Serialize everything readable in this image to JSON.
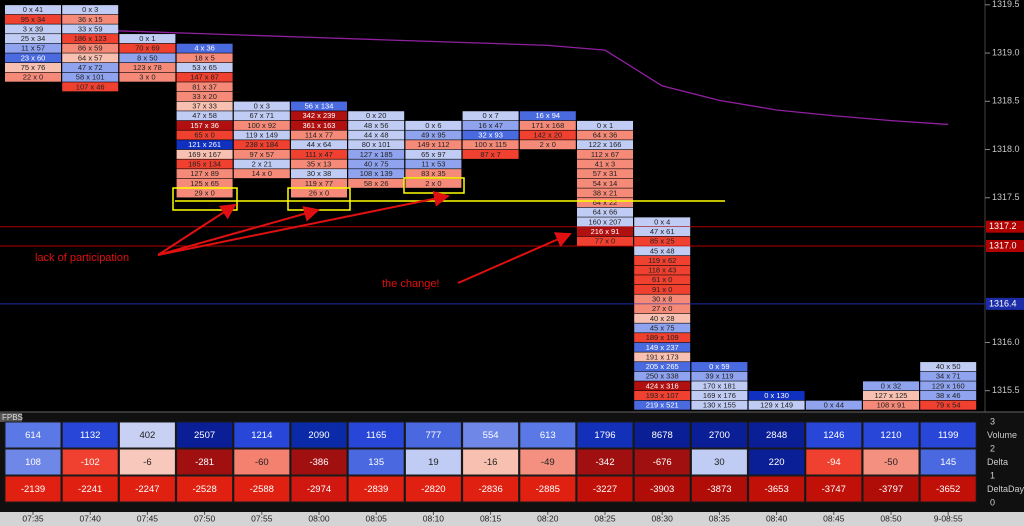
{
  "chart_data": {
    "type": "footprint",
    "categories": [
      "07:35",
      "07:40",
      "07:45",
      "07:50",
      "07:55",
      "08:00",
      "08:05",
      "08:10",
      "08:15",
      "08:20",
      "08:25",
      "08:30",
      "08:35",
      "08:40",
      "08:45",
      "08:50",
      "9-08:55"
    ],
    "ylim": [
      1315.3,
      1319.55
    ],
    "yticks": [
      1319.5,
      {
        "value": 1319,
        "label": "1319.0"
      },
      1318.5,
      {
        "value": 1318,
        "label": "1318.0"
      },
      1317.5,
      {
        "value": 1316,
        "label": "1316.0"
      },
      1315.5
    ],
    "tick_size": 0.1,
    "price_markers": [
      {
        "value": 1317.2,
        "color": "#b00000"
      },
      {
        "value": 1317,
        "label": "1317.0",
        "color": "#b00000"
      },
      {
        "value": 1316.4,
        "color": "#1c2ca8"
      }
    ],
    "ma": {
      "color": "#9020a0",
      "values": [
        null,
        1319.24,
        1319.22,
        1319.2,
        1319.18,
        1319.16,
        1319.14,
        1319.12,
        1319.1,
        1319.08,
        1319.03,
        1318.66,
        1318.51,
        1318.41,
        1318.35,
        1318.3,
        1318.26
      ]
    },
    "columns": [
      {
        "high": 1319.45,
        "cells": [
          [
            "0 x 41",
            "#c0ccf4"
          ],
          [
            "95 x 34",
            "#f04030"
          ],
          [
            "3 x 39",
            "#c0ccf4"
          ],
          [
            "25 x 34",
            "#c0ccf4"
          ],
          [
            "11 x 57",
            "#8fa3ee"
          ],
          [
            "23 x 60",
            "#4a6ae0"
          ],
          [
            "75 x 76",
            "#f8c0b0"
          ],
          [
            "22 x 0",
            "#f58a78"
          ]
        ]
      },
      {
        "high": 1319.45,
        "cells": [
          [
            "0 x 3",
            "#c0ccf4"
          ],
          [
            "36 x 15",
            "#f58a78"
          ],
          [
            "33 x 59",
            "#c0ccf4"
          ],
          [
            "186 x 123",
            "#f04030"
          ],
          [
            "86 x 59",
            "#f58a78"
          ],
          [
            "64 x 57",
            "#f8c0b0"
          ],
          [
            "47 x 72",
            "#8fa3ee"
          ],
          [
            "58 x 101",
            "#8fa3ee"
          ],
          [
            "107 x 46",
            "#f04030"
          ]
        ]
      },
      {
        "high": 1319.15,
        "cells": [
          [
            "0 x 1",
            "#c0ccf4"
          ],
          [
            "70 x 69",
            "#f04030"
          ],
          [
            "8 x 50",
            "#8fa3ee"
          ],
          [
            "123 x 78",
            "#f58a78"
          ],
          [
            "3 x 0",
            "#f58a78"
          ]
        ]
      },
      {
        "high": 1319.05,
        "cells": [
          [
            "4 x 36",
            "#4a6ae0"
          ],
          [
            "18 x 5",
            "#f58a78"
          ],
          [
            "53 x 65",
            "#c0ccf4"
          ],
          [
            "147 x 87",
            "#f04030"
          ],
          [
            "81 x 37",
            "#f58a78"
          ],
          [
            "33 x 20",
            "#f58a78"
          ],
          [
            "37 x 33",
            "#f8c0b0"
          ],
          [
            "47 x 58",
            "#c0ccf4"
          ],
          [
            "157 x 36",
            "#b01010"
          ],
          [
            "65 x 0",
            "#f04030"
          ],
          [
            "121 x 261",
            "#1030c0"
          ],
          [
            "169 x 167",
            "#f8c0b0"
          ],
          [
            "185 x 134",
            "#f04030"
          ],
          [
            "127 x 89",
            "#f58a78"
          ],
          [
            "125 x 65",
            "#f58a78"
          ],
          [
            "29 x 0",
            "#f58a78"
          ]
        ]
      },
      {
        "high": 1318.45,
        "cells": [
          [
            "0 x 3",
            "#c0ccf4"
          ],
          [
            "67 x 71",
            "#c0ccf4"
          ],
          [
            "100 x 92",
            "#f58a78"
          ],
          [
            "119 x 149",
            "#c0ccf4"
          ],
          [
            "238 x 184",
            "#f04030"
          ],
          [
            "97 x 57",
            "#f58a78"
          ],
          [
            "2 x 21",
            "#c0ccf4"
          ],
          [
            "14 x 0",
            "#f58a78"
          ]
        ]
      },
      {
        "high": 1318.45,
        "cells": [
          [
            "56 x 134",
            "#4a6ae0"
          ],
          [
            "342 x 239",
            "#b01010"
          ],
          [
            "361 x 163",
            "#b01010"
          ],
          [
            "114 x 77",
            "#f58a78"
          ],
          [
            "44 x 64",
            "#c0ccf4"
          ],
          [
            "111 x 47",
            "#f04030"
          ],
          [
            "35 x 13",
            "#f58a78"
          ],
          [
            "30 x 38",
            "#c0ccf4"
          ],
          [
            "119 x 77",
            "#f58a78"
          ],
          [
            "26 x 0",
            "#f58a78"
          ]
        ]
      },
      {
        "high": 1318.35,
        "cells": [
          [
            "0 x 20",
            "#c0ccf4"
          ],
          [
            "48 x 56",
            "#c0ccf4"
          ],
          [
            "44 x 48",
            "#c0ccf4"
          ],
          [
            "80 x 101",
            "#c0ccf4"
          ],
          [
            "127 x 185",
            "#8fa3ee"
          ],
          [
            "40 x 75",
            "#8fa3ee"
          ],
          [
            "108 x 139",
            "#8fa3ee"
          ],
          [
            "58 x 26",
            "#f58a78"
          ]
        ]
      },
      {
        "high": 1318.25,
        "cells": [
          [
            "0 x 6",
            "#c0ccf4"
          ],
          [
            "49 x 95",
            "#8fa3ee"
          ],
          [
            "149 x 112",
            "#f58a78"
          ],
          [
            "65 x 97",
            "#c0ccf4"
          ],
          [
            "11 x 53",
            "#8fa3ee"
          ],
          [
            "83 x 35",
            "#f58a78"
          ],
          [
            "2 x 0",
            "#f58a78"
          ]
        ]
      },
      {
        "high": 1318.35,
        "cells": [
          [
            "0 x 7",
            "#c0ccf4"
          ],
          [
            "16 x 47",
            "#8fa3ee"
          ],
          [
            "32 x 93",
            "#4a6ae0"
          ],
          [
            "100 x 115",
            "#f58a78"
          ],
          [
            "87 x 7",
            "#f04030"
          ]
        ]
      },
      {
        "high": 1318.35,
        "cells": [
          [
            "16 x 94",
            "#4a6ae0"
          ],
          [
            "171 x 168",
            "#f58a78"
          ],
          [
            "142 x 20",
            "#f04030"
          ],
          [
            "2 x 0",
            "#f58a78"
          ]
        ]
      },
      {
        "high": 1318.25,
        "cells": [
          [
            "0 x 1",
            "#c0ccf4"
          ],
          [
            "64 x 36",
            "#f58a78"
          ],
          [
            "122 x 166",
            "#c0ccf4"
          ],
          [
            "112 x 67",
            "#f58a78"
          ],
          [
            "41 x 3",
            "#f58a78"
          ],
          [
            "57 x 31",
            "#f58a78"
          ],
          [
            "54 x 14",
            "#f58a78"
          ],
          [
            "38 x 21",
            "#f58a78"
          ],
          [
            "64 x 22",
            "#f58a78"
          ],
          [
            "64 x 66",
            "#c0ccf4"
          ],
          [
            "160 x 207",
            "#c0ccf4"
          ],
          [
            "216 x 91",
            "#b01010"
          ],
          [
            "77 x 0",
            "#f04030"
          ]
        ]
      },
      {
        "high": 1317.25,
        "cells": [
          [
            "0 x 4",
            "#c0ccf4"
          ],
          [
            "47 x 61",
            "#c0ccf4"
          ],
          [
            "85 x 25",
            "#f04030"
          ],
          [
            "45 x 48",
            "#c0ccf4"
          ],
          [
            "119 x 62",
            "#f04030"
          ],
          [
            "118 x 43",
            "#f04030"
          ],
          [
            "61 x 0",
            "#f04030"
          ],
          [
            "91 x 0",
            "#f04030"
          ],
          [
            "30 x 8",
            "#f58a78"
          ],
          [
            "27 x 0",
            "#f58a78"
          ],
          [
            "40 x 28",
            "#f8c0b0"
          ],
          [
            "45 x 75",
            "#8fa3ee"
          ],
          [
            "189 x 109",
            "#f04030"
          ],
          [
            "149 x 237",
            "#4a6ae0"
          ],
          [
            "191 x 173",
            "#f8c0b0"
          ],
          [
            "205 x 265",
            "#4a6ae0"
          ],
          [
            "250 x 338",
            "#8fa3ee"
          ],
          [
            "424 x 316",
            "#b01010"
          ],
          [
            "193 x 107",
            "#f04030"
          ],
          [
            "219 x 521",
            "#4a6ae0"
          ]
        ]
      },
      {
        "high": 1315.75,
        "cells": [
          [
            "0 x 59",
            "#4a6ae0"
          ],
          [
            "39 x 119",
            "#8fa3ee"
          ],
          [
            "170 x 181",
            "#c0ccf4"
          ],
          [
            "169 x 176",
            "#c0ccf4"
          ],
          [
            "130 x 155",
            "#c0ccf4"
          ]
        ]
      },
      {
        "high": 1315.45,
        "cells": [
          [
            "0 x 130",
            "#1030c0"
          ],
          [
            "129 x 149",
            "#c0ccf4"
          ]
        ]
      },
      {
        "high": 1315.35,
        "cells": [
          [
            "0 x 44",
            "#8fa3ee"
          ]
        ]
      },
      {
        "high": 1315.55,
        "cells": [
          [
            "0 x 32",
            "#8fa3ee"
          ],
          [
            "127 x 125",
            "#f8c0b0"
          ],
          [
            "108 x 91",
            "#f58a78"
          ]
        ]
      },
      {
        "high": 1315.75,
        "cells": [
          [
            "40 x 50",
            "#c0ccf4"
          ],
          [
            "34 x 71",
            "#8fa3ee"
          ],
          [
            "129 x 160",
            "#8fa3ee"
          ],
          [
            "38 x 46",
            "#8fa3ee"
          ],
          [
            "79 x 54",
            "#f04030"
          ]
        ]
      }
    ]
  },
  "panel": {
    "title": "FPBS",
    "axis_labels": [
      3,
      2,
      1,
      0
    ],
    "rows": [
      {
        "label": "Volume",
        "values": [
          614,
          1132,
          402,
          2507,
          1214,
          2090,
          1165,
          777,
          554,
          613,
          1796,
          8678,
          2700,
          2848,
          1246,
          1210,
          1199
        ],
        "colors": [
          "#5a78e6",
          "#2846d8",
          "#c8d0f4",
          "#0a1e96",
          "#2846d8",
          "#0a2aa8",
          "#2846d8",
          "#4a68e0",
          "#6f88e8",
          "#5a78e6",
          "#1230b8",
          "#0a1e96",
          "#0a1e96",
          "#0a1e96",
          "#2846d8",
          "#2846d8",
          "#2846d8"
        ]
      },
      {
        "label": "Delta",
        "values": [
          108,
          -102,
          -6,
          -281,
          -60,
          -386,
          135,
          19,
          -16,
          -49,
          -342,
          -676,
          30,
          220,
          -94,
          -50,
          145
        ],
        "colors": [
          "#6f88e8",
          "#f04030",
          "#f8c8bc",
          "#a01010",
          "#f48070",
          "#a01010",
          "#4a68e0",
          "#c0ccf4",
          "#f8c0b0",
          "#f49080",
          "#a01010",
          "#a01010",
          "#c0ccf4",
          "#0a1e96",
          "#f04030",
          "#f49080",
          "#4a68e0"
        ]
      },
      {
        "label": "DeltaDay",
        "values": [
          -2139,
          -2241,
          -2247,
          -2528,
          -2588,
          -2974,
          -2839,
          -2820,
          -2836,
          -2885,
          -3227,
          -3903,
          -3873,
          -3653,
          -3747,
          -3797,
          -3652
        ],
        "colors": [
          "#e02010",
          "#e02010",
          "#e02010",
          "#e02010",
          "#e02010",
          "#d01810",
          "#e02010",
          "#e02010",
          "#e02010",
          "#e02010",
          "#c01008",
          "#b00c08",
          "#b00c08",
          "#c01008",
          "#c01008",
          "#b00c08",
          "#c01008"
        ]
      }
    ]
  },
  "annotations": [
    "lack of participation",
    "the change!"
  ]
}
